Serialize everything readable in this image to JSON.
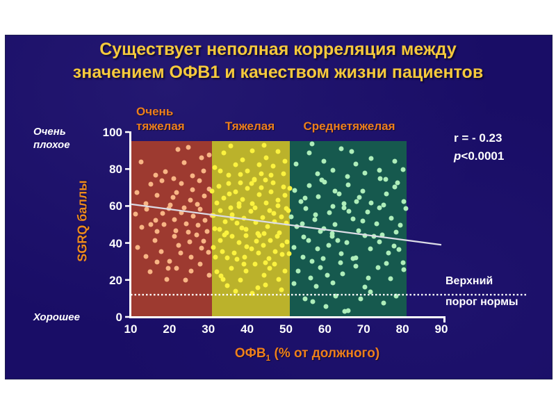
{
  "slide": {
    "title_line1": "Существует неполная корреляция между",
    "title_line2": "значением ОФВ1 и качеством жизни пациентов"
  },
  "axis_left": {
    "top_label": "Очень плохое",
    "bottom_label": "Хорошее",
    "axis_title": "SGRQ баллы"
  },
  "x_axis": {
    "title_pre": "ОФВ",
    "title_sub": "1",
    "title_post": " (% от должного)"
  },
  "stats": {
    "r": "r = - 0.23",
    "p_italic": "p",
    "p_rest": "<0.0001"
  },
  "threshold": {
    "line1": "Верхний",
    "line2": "порог нормы"
  },
  "colors": {
    "slide_background": "#190d66",
    "title_text": "#f5c93c",
    "orange_text": "#ee7f1c",
    "axis_white": "#ffffff",
    "trend_line": "#dcdce6"
  },
  "chart_data": {
    "type": "scatter",
    "title": "Существует неполная корреляция между значением ОФВ1 и качеством жизни пациентов",
    "xlabel": "ОФВ1 (% от должного)",
    "ylabel": "SGRQ баллы",
    "xlim": [
      10,
      90
    ],
    "ylim": [
      0,
      100
    ],
    "x_ticks": [
      10,
      20,
      30,
      40,
      50,
      60,
      70,
      80,
      90
    ],
    "y_ticks": [
      100,
      80,
      60,
      40,
      20,
      0
    ],
    "grid": false,
    "correlation": "r = - 0.23",
    "p_value": "p<0.0001",
    "threshold_y": 12,
    "threshold_label": "Верхний порог нормы",
    "zone_y_top": 95,
    "trendline": {
      "x1": 10,
      "y1": 61,
      "x2": 90,
      "y2": 39
    },
    "zones": [
      {
        "label": "Очень тяжелая",
        "x_start": 10,
        "x_end": 31,
        "band_color": "#9d3a30",
        "dot_color": "#f8b585",
        "points": [
          [
            13,
            83
          ],
          [
            19,
            78
          ],
          [
            22,
            90
          ],
          [
            24,
            83
          ],
          [
            26,
            76
          ],
          [
            28,
            86
          ],
          [
            29,
            79
          ],
          [
            21,
            75
          ],
          [
            16,
            77
          ],
          [
            25,
            92
          ],
          [
            30,
            88
          ],
          [
            12,
            68
          ],
          [
            14,
            62
          ],
          [
            15,
            71
          ],
          [
            17,
            65
          ],
          [
            18,
            73
          ],
          [
            20,
            60
          ],
          [
            22,
            67
          ],
          [
            23,
            72
          ],
          [
            25,
            63
          ],
          [
            26,
            69
          ],
          [
            27,
            61
          ],
          [
            28,
            74
          ],
          [
            29,
            66
          ],
          [
            30,
            70
          ],
          [
            24,
            60
          ],
          [
            21,
            64
          ],
          [
            11,
            55
          ],
          [
            13,
            48
          ],
          [
            14,
            58
          ],
          [
            16,
            52
          ],
          [
            17,
            46
          ],
          [
            18,
            56
          ],
          [
            19,
            50
          ],
          [
            20,
            59
          ],
          [
            21,
            53
          ],
          [
            22,
            47
          ],
          [
            23,
            57
          ],
          [
            24,
            51
          ],
          [
            25,
            45
          ],
          [
            26,
            54
          ],
          [
            27,
            49
          ],
          [
            28,
            58
          ],
          [
            29,
            52
          ],
          [
            30,
            46
          ],
          [
            31,
            55
          ],
          [
            15,
            50
          ],
          [
            12,
            38
          ],
          [
            14,
            33
          ],
          [
            16,
            42
          ],
          [
            18,
            36
          ],
          [
            20,
            31
          ],
          [
            21,
            43
          ],
          [
            23,
            34
          ],
          [
            25,
            40
          ],
          [
            26,
            32
          ],
          [
            27,
            44
          ],
          [
            28,
            37
          ],
          [
            29,
            41
          ],
          [
            30,
            35
          ],
          [
            22,
            39
          ],
          [
            17,
            30
          ],
          [
            15,
            25
          ],
          [
            19,
            21
          ],
          [
            22,
            27
          ],
          [
            24,
            19
          ],
          [
            26,
            24
          ],
          [
            28,
            28
          ],
          [
            30,
            22
          ],
          [
            20,
            26
          ]
        ]
      },
      {
        "label": "Тяжелая",
        "x_start": 31,
        "x_end": 51,
        "band_color": "#bbb22b",
        "dot_color": "#fbf23f",
        "points": [
          [
            32,
            80
          ],
          [
            34,
            88
          ],
          [
            35,
            76
          ],
          [
            36,
            92
          ],
          [
            37,
            82
          ],
          [
            38,
            77
          ],
          [
            39,
            85
          ],
          [
            40,
            79
          ],
          [
            41,
            90
          ],
          [
            42,
            75
          ],
          [
            43,
            83
          ],
          [
            44,
            78
          ],
          [
            45,
            87
          ],
          [
            46,
            76
          ],
          [
            47,
            81
          ],
          [
            48,
            89
          ],
          [
            49,
            77
          ],
          [
            50,
            84
          ],
          [
            33,
            79
          ],
          [
            44,
            93
          ],
          [
            31,
            68
          ],
          [
            32,
            62
          ],
          [
            33,
            71
          ],
          [
            34,
            65
          ],
          [
            35,
            73
          ],
          [
            36,
            60
          ],
          [
            37,
            67
          ],
          [
            38,
            72
          ],
          [
            39,
            63
          ],
          [
            40,
            69
          ],
          [
            41,
            61
          ],
          [
            42,
            74
          ],
          [
            43,
            66
          ],
          [
            44,
            70
          ],
          [
            45,
            62
          ],
          [
            46,
            68
          ],
          [
            47,
            73
          ],
          [
            48,
            64
          ],
          [
            49,
            71
          ],
          [
            50,
            65
          ],
          [
            51,
            69
          ],
          [
            35,
            66
          ],
          [
            38,
            61
          ],
          [
            41,
            72
          ],
          [
            45,
            74
          ],
          [
            48,
            60
          ],
          [
            31,
            55
          ],
          [
            32,
            48
          ],
          [
            33,
            58
          ],
          [
            34,
            52
          ],
          [
            35,
            46
          ],
          [
            36,
            56
          ],
          [
            37,
            50
          ],
          [
            38,
            59
          ],
          [
            39,
            53
          ],
          [
            40,
            47
          ],
          [
            41,
            57
          ],
          [
            42,
            51
          ],
          [
            43,
            45
          ],
          [
            44,
            54
          ],
          [
            45,
            49
          ],
          [
            46,
            58
          ],
          [
            47,
            52
          ],
          [
            48,
            46
          ],
          [
            49,
            55
          ],
          [
            50,
            50
          ],
          [
            51,
            57
          ],
          [
            33,
            47
          ],
          [
            36,
            53
          ],
          [
            39,
            48
          ],
          [
            42,
            59
          ],
          [
            44,
            45
          ],
          [
            47,
            56
          ],
          [
            50,
            59
          ],
          [
            31,
            38
          ],
          [
            32,
            33
          ],
          [
            33,
            42
          ],
          [
            34,
            36
          ],
          [
            35,
            31
          ],
          [
            36,
            43
          ],
          [
            37,
            34
          ],
          [
            38,
            40
          ],
          [
            39,
            32
          ],
          [
            40,
            44
          ],
          [
            41,
            37
          ],
          [
            42,
            41
          ],
          [
            43,
            35
          ],
          [
            44,
            39
          ],
          [
            45,
            30
          ],
          [
            46,
            42
          ],
          [
            47,
            36
          ],
          [
            48,
            43
          ],
          [
            49,
            33
          ],
          [
            50,
            40
          ],
          [
            51,
            34
          ],
          [
            34,
            44
          ],
          [
            37,
            31
          ],
          [
            40,
            38
          ],
          [
            43,
            44
          ],
          [
            46,
            32
          ],
          [
            49,
            39
          ],
          [
            32,
            25
          ],
          [
            34,
            21
          ],
          [
            36,
            27
          ],
          [
            38,
            19
          ],
          [
            40,
            24
          ],
          [
            42,
            28
          ],
          [
            44,
            22
          ],
          [
            46,
            26
          ],
          [
            48,
            20
          ],
          [
            50,
            25
          ],
          [
            35,
            17
          ],
          [
            39,
            29
          ],
          [
            43,
            16
          ],
          [
            47,
            29
          ],
          [
            33,
            23
          ],
          [
            45,
            18
          ],
          [
            37,
            13
          ],
          [
            41,
            12
          ],
          [
            49,
            14
          ]
        ]
      },
      {
        "label": "Среднетяжелая",
        "x_start": 51,
        "x_end": 81,
        "band_color": "#16594e",
        "dot_color": "#aeeeba",
        "points": [
          [
            53,
            82
          ],
          [
            56,
            88
          ],
          [
            58,
            77
          ],
          [
            60,
            84
          ],
          [
            62,
            79
          ],
          [
            64,
            91
          ],
          [
            66,
            76
          ],
          [
            68,
            83
          ],
          [
            70,
            78
          ],
          [
            72,
            86
          ],
          [
            74,
            80
          ],
          [
            76,
            75
          ],
          [
            78,
            85
          ],
          [
            80,
            79
          ],
          [
            57,
            93
          ],
          [
            67,
            89
          ],
          [
            52,
            68
          ],
          [
            54,
            62
          ],
          [
            56,
            71
          ],
          [
            58,
            65
          ],
          [
            60,
            73
          ],
          [
            62,
            60
          ],
          [
            64,
            67
          ],
          [
            66,
            72
          ],
          [
            68,
            63
          ],
          [
            70,
            69
          ],
          [
            72,
            61
          ],
          [
            74,
            74
          ],
          [
            76,
            66
          ],
          [
            78,
            70
          ],
          [
            80,
            62
          ],
          [
            55,
            64
          ],
          [
            59,
            74
          ],
          [
            63,
            68
          ],
          [
            69,
            65
          ],
          [
            75,
            61
          ],
          [
            79,
            73
          ],
          [
            65,
            62
          ],
          [
            51,
            55
          ],
          [
            53,
            48
          ],
          [
            55,
            58
          ],
          [
            57,
            52
          ],
          [
            59,
            46
          ],
          [
            61,
            56
          ],
          [
            63,
            50
          ],
          [
            65,
            59
          ],
          [
            67,
            53
          ],
          [
            69,
            47
          ],
          [
            71,
            57
          ],
          [
            73,
            51
          ],
          [
            75,
            45
          ],
          [
            77,
            54
          ],
          [
            79,
            49
          ],
          [
            81,
            58
          ],
          [
            54,
            50
          ],
          [
            58,
            55
          ],
          [
            62,
            45
          ],
          [
            66,
            57
          ],
          [
            70,
            52
          ],
          [
            74,
            59
          ],
          [
            78,
            46
          ],
          [
            60,
            48
          ],
          [
            52,
            38
          ],
          [
            54,
            33
          ],
          [
            56,
            42
          ],
          [
            58,
            36
          ],
          [
            60,
            31
          ],
          [
            62,
            43
          ],
          [
            64,
            34
          ],
          [
            66,
            40
          ],
          [
            68,
            32
          ],
          [
            70,
            44
          ],
          [
            72,
            37
          ],
          [
            74,
            41
          ],
          [
            76,
            35
          ],
          [
            78,
            39
          ],
          [
            80,
            30
          ],
          [
            55,
            44
          ],
          [
            61,
            38
          ],
          [
            67,
            31
          ],
          [
            73,
            43
          ],
          [
            79,
            36
          ],
          [
            63,
            41
          ],
          [
            57,
            30
          ],
          [
            53,
            25
          ],
          [
            56,
            21
          ],
          [
            59,
            27
          ],
          [
            62,
            19
          ],
          [
            65,
            24
          ],
          [
            68,
            28
          ],
          [
            71,
            22
          ],
          [
            74,
            26
          ],
          [
            77,
            20
          ],
          [
            80,
            25
          ],
          [
            58,
            16
          ],
          [
            64,
            29
          ],
          [
            70,
            16
          ],
          [
            76,
            29
          ],
          [
            52,
            18
          ],
          [
            61,
            23
          ],
          [
            55,
            10
          ],
          [
            60,
            6
          ],
          [
            63,
            12
          ],
          [
            66,
            4
          ],
          [
            69,
            9
          ],
          [
            72,
            13
          ],
          [
            75,
            7
          ],
          [
            78,
            11
          ],
          [
            57,
            8
          ],
          [
            65,
            3
          ]
        ]
      }
    ]
  }
}
